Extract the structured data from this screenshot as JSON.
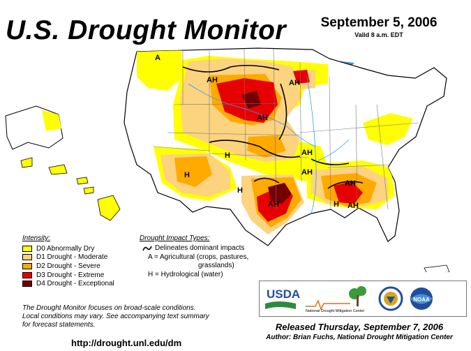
{
  "header": {
    "title": "U.S. Drought Monitor",
    "date": "September 5, 2006",
    "valid": "Valid 8 a.m. EDT"
  },
  "map": {
    "labels": [
      "A",
      "AH",
      "AH",
      "AH",
      "AH",
      "H",
      "H",
      "H",
      "AH",
      "AH",
      "AH",
      "H",
      "AH"
    ]
  },
  "legend": {
    "heading": "Intensity:",
    "items": [
      {
        "label": "D0 Abnormally Dry",
        "color": "#ffff00"
      },
      {
        "label": "D1 Drought - Moderate",
        "color": "#fcd37f"
      },
      {
        "label": "D2 Drought - Severe",
        "color": "#ffaa00"
      },
      {
        "label": "D3 Drought - Extreme",
        "color": "#e60000"
      },
      {
        "label": "D4 Drought - Exceptional",
        "color": "#730000"
      }
    ]
  },
  "impacts": {
    "heading": "Drought Impact Types:",
    "delineates": "Delineates dominant impacts",
    "agricultural": "A = Agricultural (crops, pastures,",
    "agricultural_cont": "grasslands)",
    "hydrological": "H = Hydrological (water)"
  },
  "notes": {
    "line1": "The Drought Monitor focuses on broad-scale conditions.",
    "line2": "Local conditions may vary. See accompanying text summary",
    "line3": "for forecast statements."
  },
  "footer": {
    "url": "http://drought.unl.edu/dm",
    "released": "Released Thursday, September 7, 2006",
    "author": "Author: Brian Fuchs, National Drought Mitigation Center"
  },
  "logos": {
    "usda": "USDA",
    "ndmc": "National Drought Mitigation Center",
    "doc_icon": "department-of-commerce-seal",
    "noaa": "NOAA"
  }
}
